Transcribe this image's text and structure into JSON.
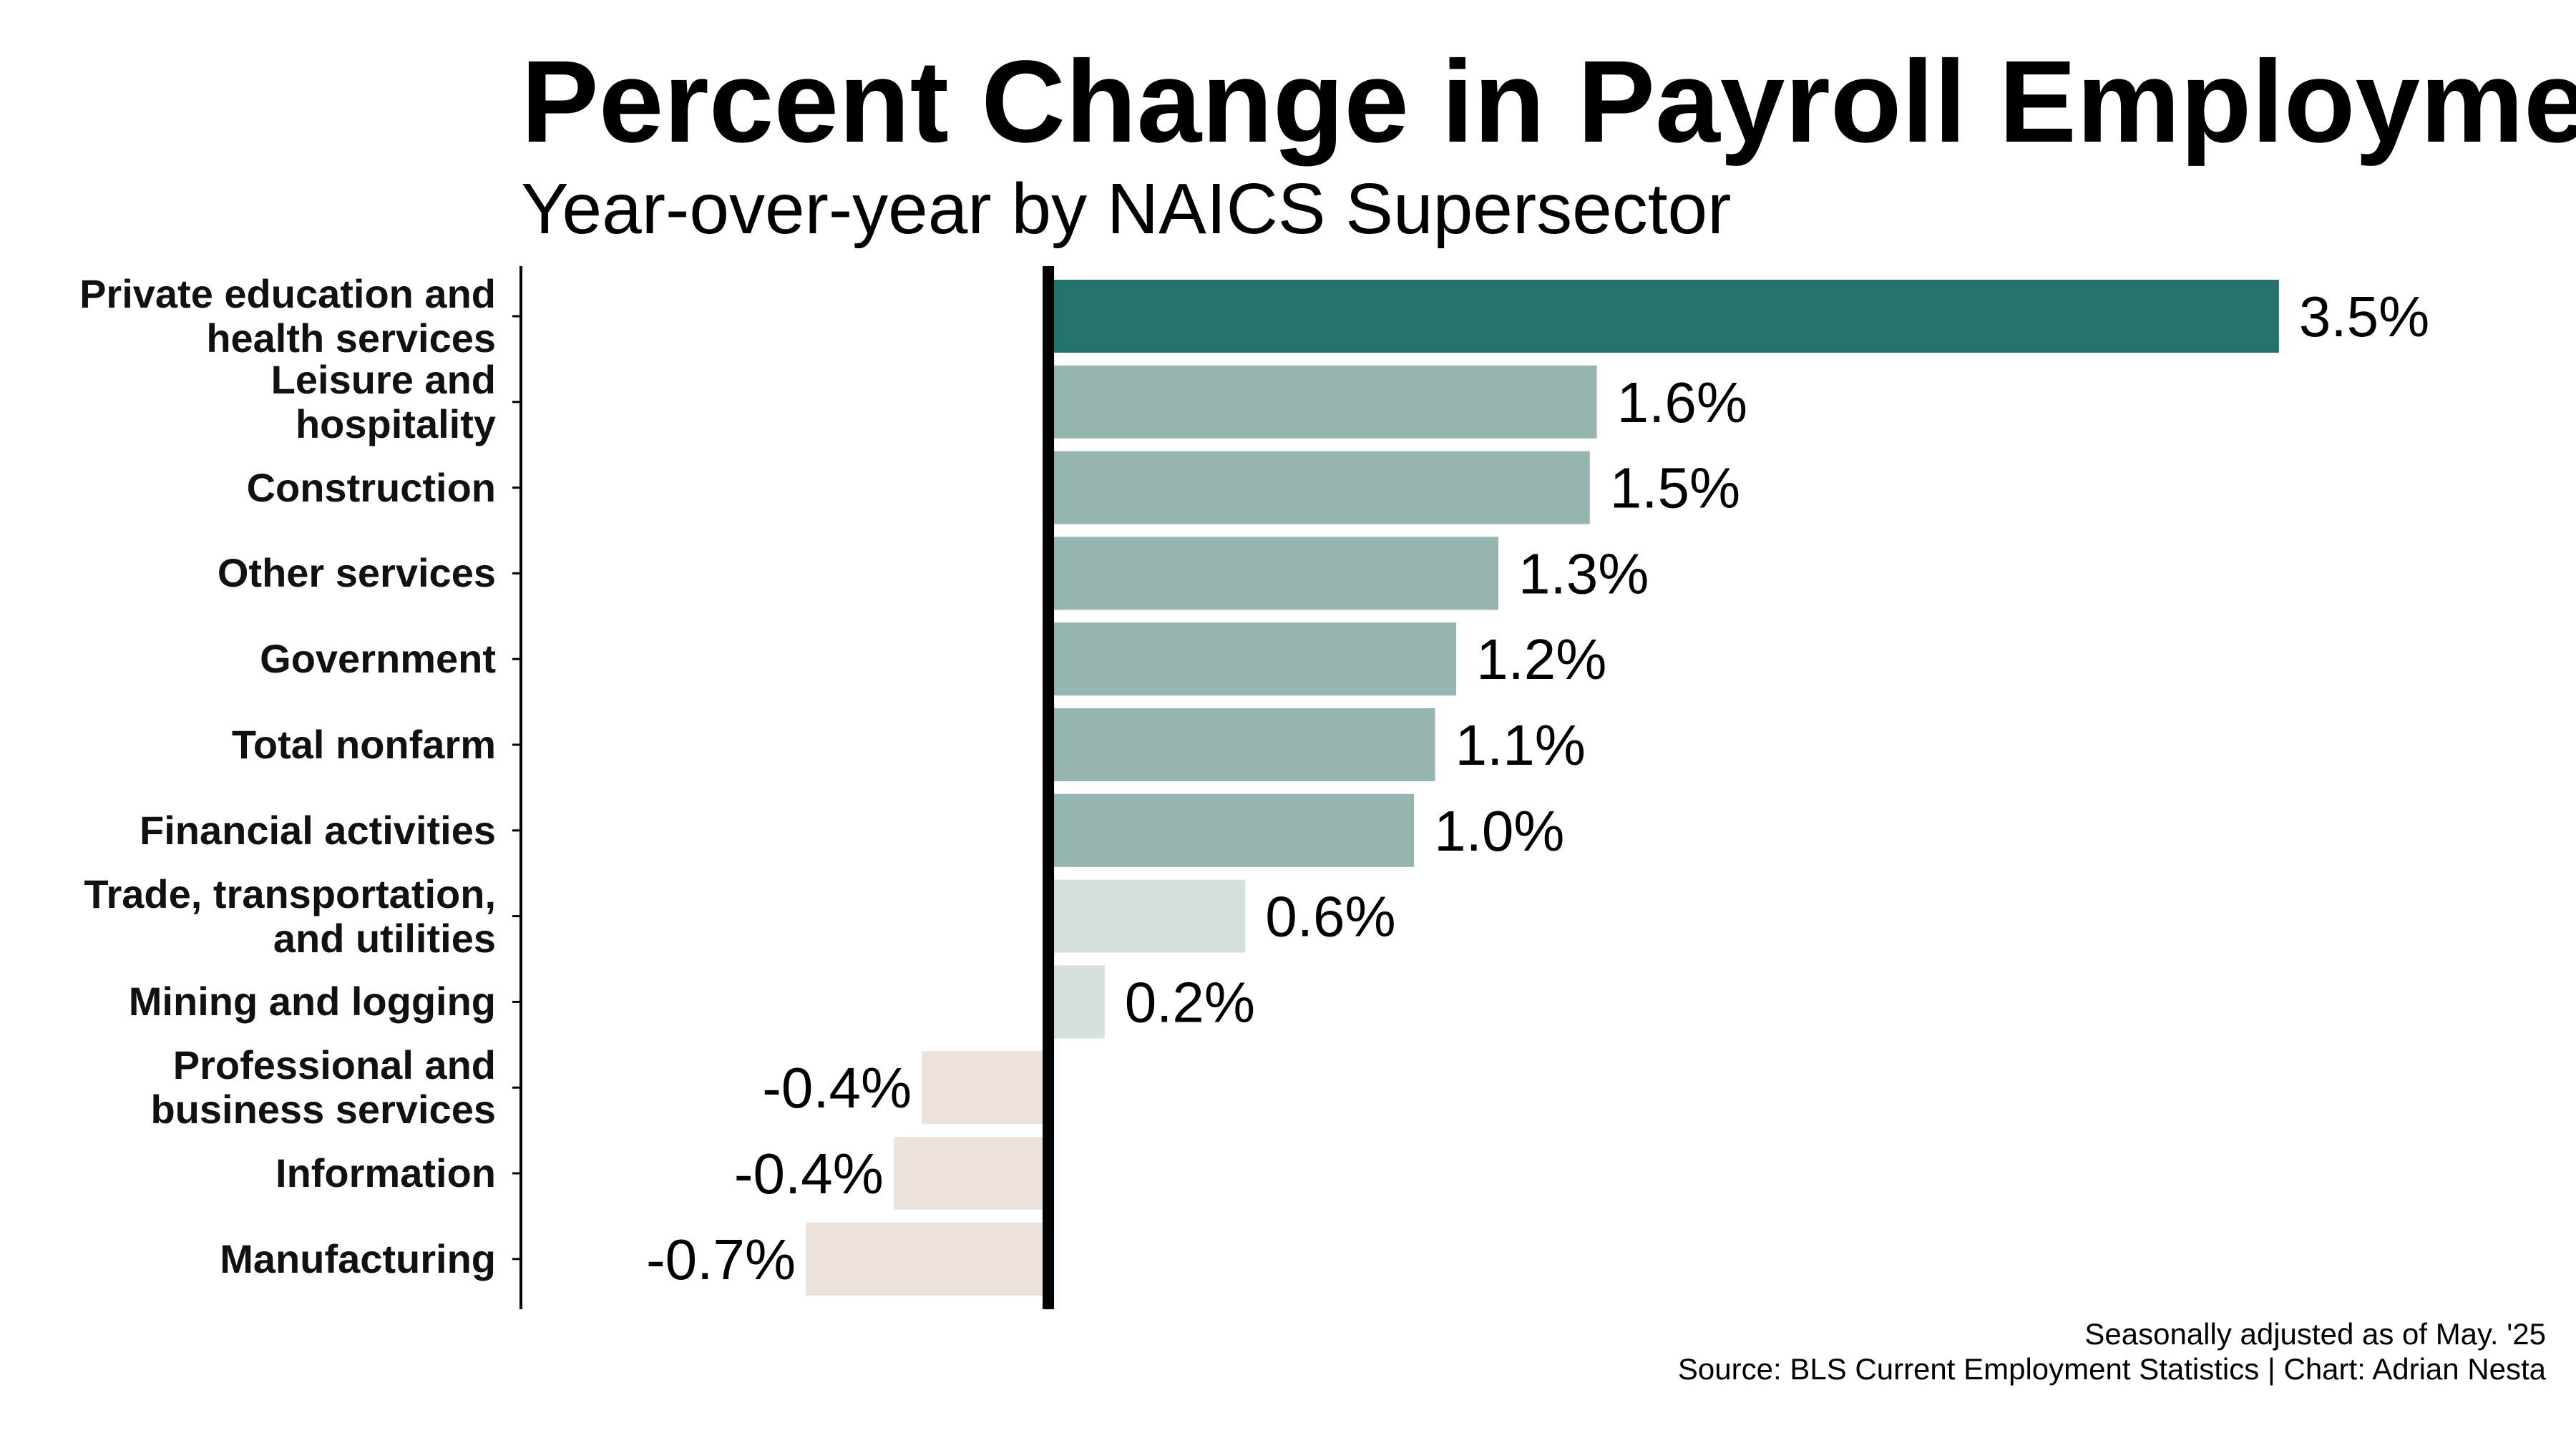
{
  "chart_data": {
    "type": "bar",
    "orientation": "horizontal",
    "title": "Percent Change in Payroll Employment",
    "subtitle": "Year-over-year by NAICS Supersector",
    "categories": [
      "Private education and\nhealth services",
      "Leisure and\nhospitality",
      "Construction",
      "Other services",
      "Government",
      "Total nonfarm",
      "Financial activities",
      "Trade, transportation,\nand utilities",
      "Mining and logging",
      "Professional and\nbusiness services",
      "Information",
      "Manufacturing"
    ],
    "values": [
      3.5,
      1.56,
      1.54,
      1.28,
      1.16,
      1.1,
      1.04,
      0.56,
      0.16,
      -0.36,
      -0.44,
      -0.69
    ],
    "value_labels": [
      "3.5%",
      "1.6%",
      "1.5%",
      "1.3%",
      "1.2%",
      "1.1%",
      "1.0%",
      "0.6%",
      "0.2%",
      "-0.4%",
      "-0.4%",
      "-0.7%"
    ],
    "colors": [
      "#23736a",
      "#96b5b0",
      "#96b5b0",
      "#96b5b0",
      "#96b5b0",
      "#96b5b0",
      "#96b5b0",
      "#d6e0de",
      "#d6e0de",
      "#ede3dd",
      "#ede3dd",
      "#ede3dd"
    ],
    "xlim": [
      -1.5,
      4.3
    ],
    "notes": [
      "Seasonally adjusted as of May. '25",
      "Source: BLS Current Employment Statistics | Chart: Adrian Nesta"
    ]
  }
}
